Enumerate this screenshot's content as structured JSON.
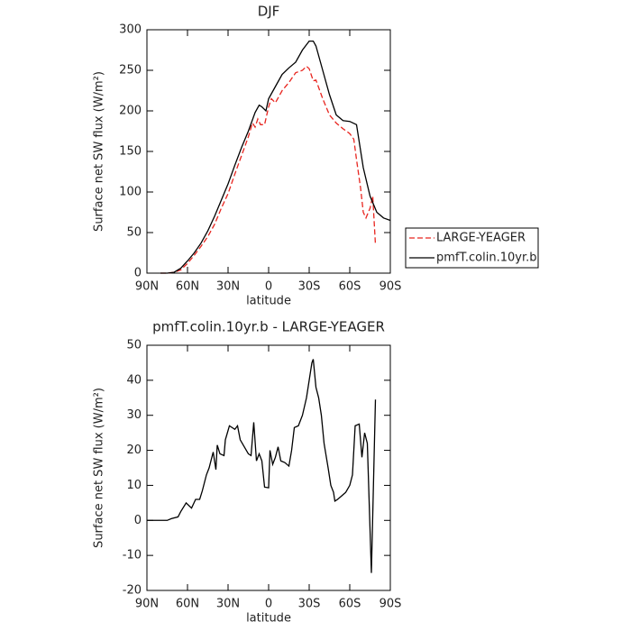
{
  "chart_data": [
    {
      "type": "line",
      "title": "DJF",
      "x_label": "latitude",
      "y_label": "Surface net SW flux (W/m²)",
      "xlim": [
        90,
        -90
      ],
      "xticks": [
        {
          "value": 90,
          "label": "90N"
        },
        {
          "value": 60,
          "label": "60N"
        },
        {
          "value": 30,
          "label": "30N"
        },
        0,
        {
          "value": -30,
          "label": "30S"
        },
        {
          "value": -60,
          "label": "60S"
        },
        {
          "value": -90,
          "label": "90S"
        }
      ],
      "ylim": [
        0,
        300
      ],
      "yticks": [
        0,
        50,
        100,
        150,
        200,
        250,
        300
      ],
      "legend": "right",
      "series": [
        {
          "name": "LARGE-YEAGER",
          "color": "#e8251f",
          "dash": true,
          "x": [
            80,
            75,
            70,
            65,
            60,
            55,
            50,
            45,
            40,
            35,
            30,
            25,
            20,
            15,
            12,
            10,
            8,
            6,
            3,
            0,
            -2,
            -5,
            -10,
            -15,
            -20,
            -25,
            -28,
            -30,
            -33,
            -35,
            -40,
            -45,
            -50,
            -55,
            -60,
            -63,
            -65,
            -68,
            -70,
            -72,
            -75,
            -77,
            -79
          ],
          "values": [
            0,
            0,
            1,
            4,
            12,
            22,
            33,
            45,
            60,
            80,
            98,
            122,
            145,
            168,
            185,
            180,
            190,
            183,
            183,
            205,
            215,
            210,
            225,
            235,
            247,
            250,
            255,
            252,
            237,
            238,
            215,
            195,
            185,
            178,
            172,
            165,
            140,
            105,
            75,
            68,
            80,
            95,
            35
          ]
        },
        {
          "name": "pmfT.colin.10yr.b",
          "color": "#000000",
          "dash": false,
          "x": [
            80,
            75,
            70,
            65,
            60,
            55,
            50,
            45,
            40,
            35,
            30,
            25,
            20,
            15,
            10,
            7,
            5,
            2,
            0,
            -5,
            -10,
            -15,
            -20,
            -25,
            -30,
            -33,
            -35,
            -40,
            -45,
            -50,
            -55,
            -60,
            -65,
            -70,
            -75,
            -80,
            -85,
            -90
          ],
          "values": [
            0,
            0,
            1,
            6,
            15,
            25,
            37,
            52,
            70,
            90,
            110,
            133,
            155,
            175,
            198,
            207,
            205,
            200,
            215,
            230,
            245,
            253,
            260,
            275,
            286,
            286,
            280,
            250,
            220,
            195,
            188,
            187,
            183,
            130,
            95,
            75,
            68,
            65
          ]
        }
      ]
    },
    {
      "type": "line",
      "title": "pmfT.colin.10yr.b - LARGE-YEAGER",
      "x_label": "latitude",
      "y_label": "Surface net SW flux (W/m²)",
      "xlim": [
        90,
        -90
      ],
      "xticks": [
        {
          "value": 90,
          "label": "90N"
        },
        {
          "value": 60,
          "label": "60N"
        },
        {
          "value": 30,
          "label": "30N"
        },
        0,
        {
          "value": -30,
          "label": "30S"
        },
        {
          "value": -60,
          "label": "60S"
        },
        {
          "value": -90,
          "label": "90S"
        }
      ],
      "ylim": [
        -20,
        50
      ],
      "yticks": [
        -20,
        -10,
        0,
        10,
        20,
        30,
        40,
        50
      ],
      "color": "#000000",
      "x": [
        90,
        80,
        75,
        72,
        67,
        65,
        61,
        57,
        54,
        51,
        49,
        46,
        44,
        41,
        39,
        38,
        36,
        33,
        32,
        29,
        25,
        23,
        21,
        18,
        15,
        13,
        11,
        9,
        7,
        5,
        3,
        0,
        -1,
        -3,
        -5,
        -7,
        -9,
        -12,
        -15,
        -17,
        -19,
        -22,
        -25,
        -28,
        -30,
        -32,
        -33,
        -35,
        -37,
        -39,
        -41,
        -44,
        -46,
        -48,
        -49,
        -51,
        -54,
        -57,
        -60,
        -62,
        -64,
        -67,
        -69,
        -71,
        -73,
        -76,
        -79
      ],
      "values": [
        0,
        0,
        0,
        0.5,
        1,
        2.5,
        5,
        3.5,
        6,
        6,
        8.5,
        13,
        15,
        19.5,
        14.5,
        21.5,
        19,
        18.5,
        23,
        27,
        26,
        27,
        23,
        21,
        19,
        18.5,
        28,
        17,
        19,
        17,
        9.5,
        9.3,
        20,
        16,
        18,
        21,
        17,
        16.5,
        15.5,
        20,
        26.5,
        27,
        30,
        35,
        40,
        45,
        46,
        38,
        35,
        30,
        22,
        15,
        10,
        8,
        5.5,
        6,
        7,
        8,
        10,
        13,
        27,
        27.5,
        18,
        25,
        22,
        -15,
        34.5
      ]
    }
  ]
}
